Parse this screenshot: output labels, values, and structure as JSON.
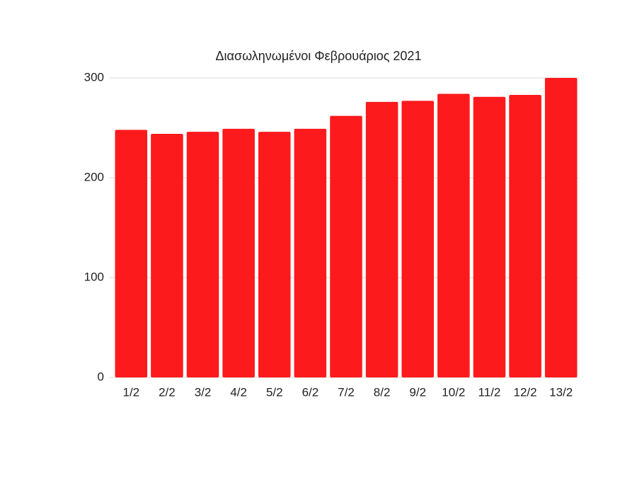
{
  "chart_data": {
    "type": "bar",
    "title": "Διασωληνωμένοι Φεβρουάριος 2021",
    "categories": [
      "1/2",
      "2/2",
      "3/2",
      "4/2",
      "5/2",
      "6/2",
      "7/2",
      "8/2",
      "9/2",
      "10/2",
      "11/2",
      "12/2",
      "13/2"
    ],
    "values": [
      248,
      244,
      246,
      249,
      246,
      249,
      262,
      276,
      277,
      284,
      281,
      283,
      300
    ],
    "color": "#fd1a1c",
    "ylim": [
      0,
      300
    ],
    "yticks": [
      0,
      100,
      200,
      300
    ],
    "grid": true
  }
}
